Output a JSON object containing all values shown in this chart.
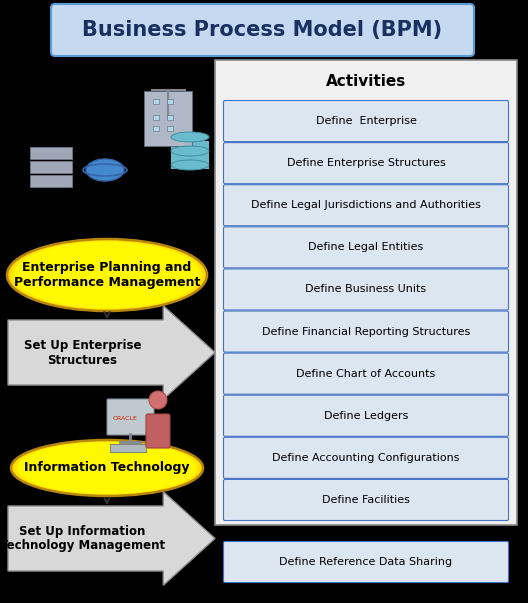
{
  "title": "Business Process Model (BPM)",
  "title_fontsize": 15,
  "activities_label": "Activities",
  "activities": [
    "Define  Enterprise",
    "Define Enterprise Structures",
    "Define Legal Jurisdictions and Authorities",
    "Define Legal Entities",
    "Define Business Units",
    "Define Financial Reporting Structures",
    "Define Chart of Accounts",
    "Define Ledgers",
    "Define Accounting Configurations",
    "Define Facilities"
  ],
  "activities_bottom": [
    "Define Reference Data Sharing"
  ],
  "ellipse1_label": "Enterprise Planning and\nPerformance Management",
  "ellipse2_label": "Information Technology",
  "arrow1_label": "Set Up Enterprise\nStructures",
  "arrow2_label": "Set Up Information\nTechnology Management",
  "bg_color": "#000000",
  "title_box_fill": "#c5d9f1",
  "title_box_edge": "#5b9bd5",
  "panel_fill": "#e8e8e8",
  "panel_edge": "#888888",
  "activity_fill": "#dce6f1",
  "activity_edge": "#4472c4",
  "activity_fill2": "#c8d8ee",
  "ellipse_fill": "#ffd700",
  "ellipse_edge": "#c8a000",
  "arrow_fill": "#d8d8d8",
  "arrow_edge": "#909090",
  "bottom_bar_fill": "#dce6f1",
  "bottom_bar_edge": "#4472c4"
}
